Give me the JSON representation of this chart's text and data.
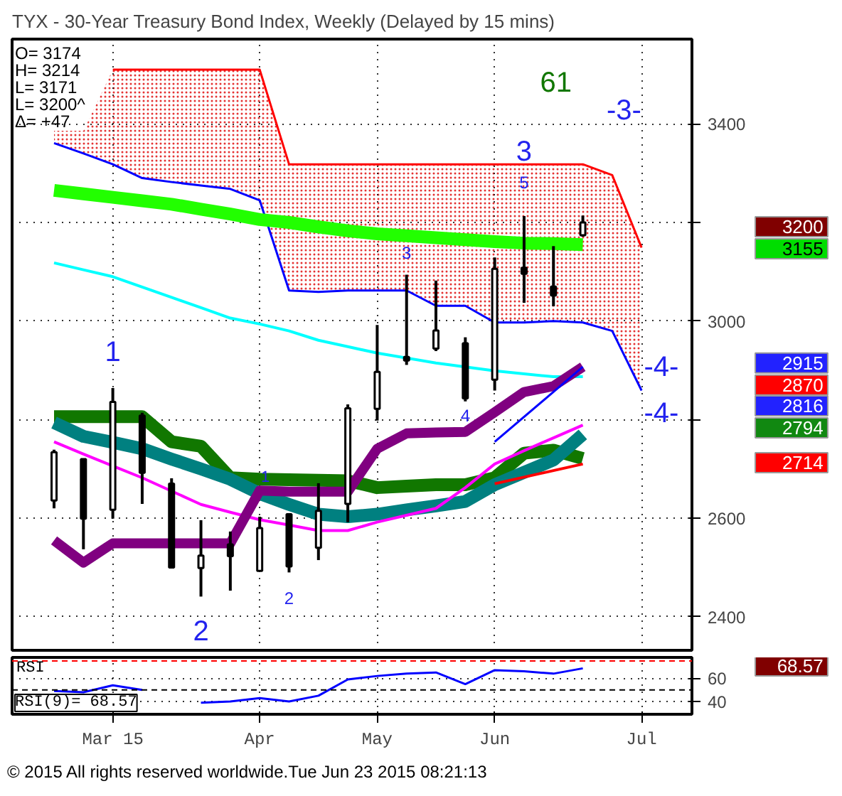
{
  "chart_data": [
    {
      "type": "candlestick",
      "title": "TYX - 30-Year Treasury Bond Index, Weekly (Delayed by 15 mins)",
      "x": [
        "2015-02-16",
        "2015-02-23",
        "2015-03-02",
        "2015-03-09",
        "2015-03-16",
        "2015-03-23",
        "2015-03-30",
        "2015-04-06",
        "2015-04-13",
        "2015-04-20",
        "2015-04-27",
        "2015-05-04",
        "2015-05-11",
        "2015-05-18",
        "2015-05-25",
        "2015-06-01",
        "2015-06-08",
        "2015-06-15",
        "2015-06-22",
        "2015-06-29",
        "2015-07-06"
      ],
      "ohlc": [
        [
          2636,
          2739,
          2620,
          2734
        ],
        [
          2720,
          2720,
          2537,
          2599
        ],
        [
          2617,
          2864,
          2599,
          2836
        ],
        [
          2808,
          2814,
          2629,
          2692
        ],
        [
          2670,
          2681,
          2498,
          2500
        ],
        [
          2499,
          2596,
          2441,
          2524
        ],
        [
          2547,
          2573,
          2453,
          2523
        ],
        [
          2493,
          2603,
          2493,
          2580
        ],
        [
          2608,
          2610,
          2490,
          2502
        ],
        [
          2540,
          2671,
          2515,
          2615
        ],
        [
          2629,
          2831,
          2592,
          2823
        ],
        [
          2822,
          2992,
          2798,
          2897
        ],
        [
          2927,
          3094,
          2911,
          2920
        ],
        [
          2944,
          3082,
          2939,
          2981
        ],
        [
          2955,
          2967,
          2837,
          2843
        ],
        [
          2881,
          3129,
          2859,
          3106
        ],
        [
          3108,
          3213,
          3037,
          3096
        ],
        [
          3070,
          3152,
          3030,
          3052
        ],
        [
          3174,
          3214,
          3171,
          3200
        ],
        null,
        null
      ],
      "series": [
        {
          "type": "line",
          "color": "#ff0000",
          "values": [
            null,
            null,
            3510,
            3510,
            3510,
            3510,
            3510,
            3510,
            3318,
            3318,
            3318,
            3318,
            3318,
            3318,
            3318,
            3318,
            3318,
            3318,
            3318,
            3296,
            3149
          ]
        },
        {
          "type": "line",
          "color": "#0000ff",
          "values": [
            3361,
            3340,
            3318,
            3290,
            3282,
            3275,
            3268,
            3245,
            3062,
            3059,
            3062,
            3062,
            3062,
            3031,
            3031,
            2997,
            2997,
            3000,
            2997,
            2980,
            2859
          ],
          "lower": [
            3361,
            3340,
            3318,
            3290,
            3282,
            3275,
            3268,
            3245,
            3062,
            3059,
            3062,
            3062,
            3062,
            3031,
            3031,
            2997,
            2997,
            3000,
            2997,
            2980,
            2859
          ],
          "upper": [
            3386,
            3386,
            3510,
            3510,
            3510,
            3510,
            3510,
            3510,
            3318,
            3318,
            3318,
            3318,
            3318,
            3318,
            3318,
            3318,
            3318,
            3318,
            3318,
            3296,
            3149
          ]
        },
        {
          "type": "line",
          "color": "#22ff00",
          "values": [
            3265,
            3258,
            3251,
            3244,
            3237,
            3227,
            3217,
            3206,
            3200,
            3191,
            3183,
            3177,
            3173,
            3169,
            3165,
            3161,
            3158,
            3157,
            3155,
            null,
            null
          ]
        },
        {
          "type": "line",
          "color": "#00ffff",
          "values": [
            3118,
            3104,
            3090,
            3069,
            3048,
            3027,
            3006,
            2994,
            2980,
            2961,
            2948,
            2935,
            2925,
            2915,
            2907,
            2899,
            2893,
            2887,
            2887,
            null,
            null
          ]
        },
        {
          "type": "line",
          "color": "#117700",
          "values": [
            2806,
            2806,
            2806,
            2806,
            2755,
            2746,
            2682,
            2679,
            2678,
            2677,
            2676,
            2662,
            2665,
            2668,
            2668,
            2682,
            2732,
            2738,
            2721,
            null,
            null
          ]
        },
        {
          "type": "line",
          "color": "#008080",
          "values": [
            2794,
            2766,
            2754,
            2741,
            2720,
            2700,
            2679,
            2650,
            2628,
            2608,
            2603,
            2608,
            2617,
            2625,
            2634,
            2668,
            2693,
            2718,
            2770,
            null,
            null
          ]
        },
        {
          "type": "line",
          "color": "#ff00ff",
          "values": [
            2755,
            2730,
            2706,
            2682,
            2655,
            2628,
            2612,
            2597,
            2586,
            2575,
            2575,
            2592,
            2606,
            2620,
            2662,
            2710,
            2737,
            2763,
            2789,
            null,
            null
          ]
        },
        {
          "type": "line",
          "color": "#800080",
          "values": [
            2555,
            2510,
            2549,
            2549,
            2549,
            2549,
            2549,
            2656,
            2654,
            2654,
            2654,
            2741,
            2772,
            2774,
            2775,
            2815,
            2856,
            2868,
            2907,
            null,
            null
          ]
        },
        {
          "type": "line",
          "color": "#0000ff",
          "x": [
            "2015-06-01",
            "2015-06-22"
          ],
          "values": [
            2755,
            2907
          ]
        },
        {
          "type": "line",
          "color": "#ff0000",
          "x": [
            "2015-06-01",
            "2015-06-22"
          ],
          "values": [
            2670,
            2710
          ]
        }
      ],
      "xlim": [
        "2015-02-06",
        "2015-07-18"
      ],
      "xticks": [
        {
          "value": "2015-03-02",
          "label": null
        },
        {
          "value": "2015-04-06",
          "label": null
        },
        {
          "value": "2015-05-04",
          "label": null
        },
        {
          "value": "2015-06-01",
          "label": null
        },
        {
          "value": "2015-07-06",
          "label": null
        }
      ],
      "ylim": [
        2332,
        3572
      ],
      "yticks": [
        2400,
        2600,
        {
          "value": 2800,
          "label": null
        },
        3000,
        {
          "value": 3200,
          "label": null
        },
        3400
      ],
      "tick_labels": "y",
      "grid": true,
      "annotations": [
        "O= 3174",
        "H= 3214",
        "L= 3171",
        "L= 3200^",
        "Δ= +47",
        {
          "text": "1",
          "x": "2015-03-02",
          "y": 2864
        },
        {
          "text": "2",
          "x": "2015-03-23",
          "y": 2441
        },
        {
          "text": "1",
          "x": "2015-04-06",
          "y": 2656
        },
        {
          "text": "2",
          "x": "2015-04-13",
          "y": 2490
        },
        {
          "text": "3",
          "x": "2015-05-11",
          "y": 3094
        },
        {
          "text": "4",
          "x": "2015-05-25",
          "y": 2775
        },
        {
          "text": "3",
          "x": "2015-06-08",
          "y": 3213
        },
        {
          "text": "5",
          "x": "2015-06-08",
          "y": 3213
        },
        "61",
        "-3-",
        "-4-",
        "-4-",
        "3200",
        "3155",
        "2915",
        "2870",
        "2816",
        "2794",
        "2714"
      ]
    },
    {
      "type": "line",
      "ylabel": "RSI",
      "x": [
        "2015-02-16",
        "2015-02-23",
        "2015-03-02",
        "2015-03-09",
        "2015-03-16",
        "2015-03-23",
        "2015-03-30",
        "2015-04-06",
        "2015-04-13",
        "2015-04-20",
        "2015-04-27",
        "2015-05-04",
        "2015-05-11",
        "2015-05-18",
        "2015-05-25",
        "2015-06-01",
        "2015-06-08",
        "2015-06-15",
        "2015-06-22"
      ],
      "series": [
        {
          "color": "#0000ff",
          "values": [
            49,
            48,
            54,
            50,
            null,
            39,
            40,
            43,
            40,
            45,
            59,
            62,
            64,
            65,
            55,
            67,
            66,
            64,
            68.57
          ]
        }
      ],
      "xlim": [
        "2015-02-06",
        "2015-07-18"
      ],
      "xticks": [
        {
          "value": "2015-03-02",
          "label": "Mar 15"
        },
        {
          "value": "2015-04-06",
          "label": "Apr"
        },
        {
          "value": "2015-05-04",
          "label": "May"
        },
        {
          "value": "2015-06-01",
          "label": "Jun"
        },
        {
          "value": "2015-07-06",
          "label": "Jul"
        }
      ],
      "ylim": [
        29,
        78
      ],
      "yticks": [
        40,
        60
      ],
      "grid": true,
      "ref_lines": [
        {
          "axis": "y",
          "value": 75,
          "color": "#ff0000",
          "line_style": "dashed"
        },
        {
          "axis": "y",
          "value": 50,
          "color": "#000000",
          "line_style": "dashed"
        }
      ],
      "annotations": [
        "RSI(9)= 68.57",
        "68.57",
        "© 2015 All rights reserved worldwide.",
        "Tue Jun 23 2015 08:21:13"
      ]
    }
  ]
}
